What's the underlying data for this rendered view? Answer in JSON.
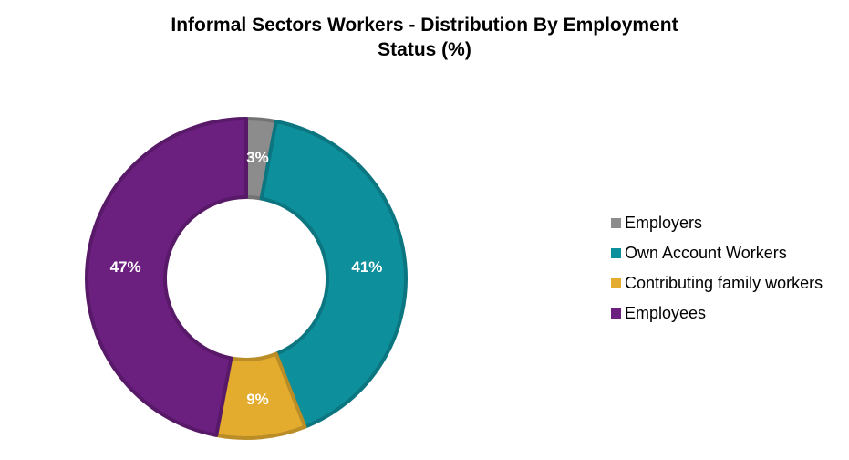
{
  "chart_data": {
    "type": "pie",
    "variant": "donut",
    "title_lines": [
      "Informal Sectors Workers - Distribution By Employment",
      "Status (%)"
    ],
    "categories": [
      "Employers",
      "Own Account Workers",
      "Contributing family workers",
      "Employees"
    ],
    "values": [
      3,
      41,
      9,
      47
    ],
    "data_labels": [
      "3%",
      "41%",
      "9%",
      "47%"
    ],
    "unit": "%",
    "colors": [
      "#8c8c8c",
      "#0e8f9c",
      "#e3ac2f",
      "#6b1f7f"
    ],
    "legend_position": "right"
  }
}
